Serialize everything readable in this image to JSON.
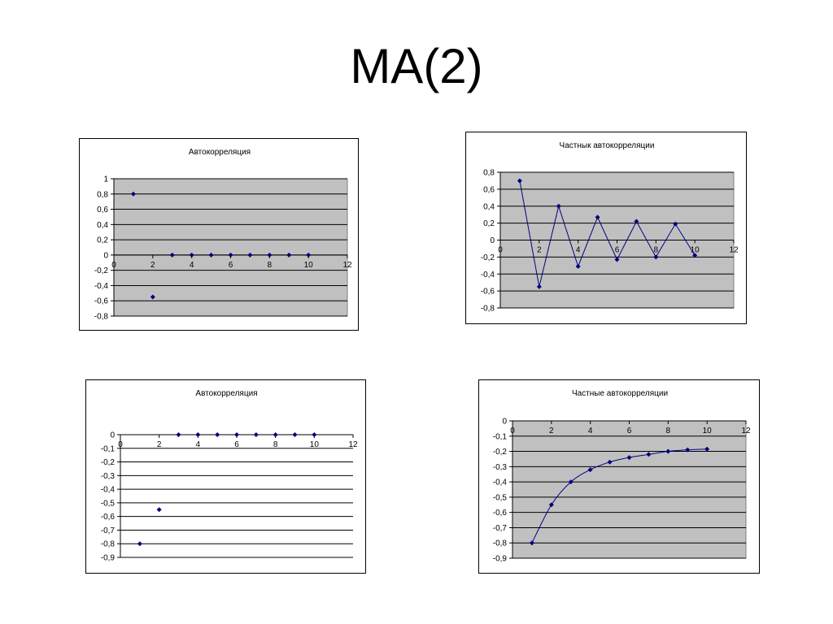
{
  "slide": {
    "title": "MA(2)"
  },
  "chart_data": [
    {
      "type": "scatter",
      "title": "Автокорреляция",
      "x": [
        1,
        2,
        3,
        4,
        5,
        6,
        7,
        8,
        9,
        10
      ],
      "y": [
        0.8,
        -0.55,
        0,
        0,
        0,
        0,
        0,
        0,
        0,
        0
      ],
      "xlim": [
        0,
        12
      ],
      "ylim": [
        -0.8,
        1
      ],
      "xticks": [
        0,
        2,
        4,
        6,
        8,
        10,
        12
      ],
      "yticks": [
        1,
        0.8,
        0.6,
        0.4,
        0.2,
        0,
        -0.2,
        -0.4,
        -0.6,
        -0.8
      ],
      "xtick_labels": [
        "0",
        "2",
        "4",
        "6",
        "8",
        "10",
        "12"
      ],
      "ytick_labels": [
        "1",
        "0,8",
        "0,6",
        "0,4",
        "0,2",
        "0",
        "-0,2",
        "-0,4",
        "-0,6",
        "-0,8"
      ],
      "grid": true,
      "legend": "none",
      "plot_bg": "#c0c0c0",
      "marker_color": "#000080"
    },
    {
      "type": "line",
      "title": "Частнык автокорреляции",
      "x": [
        1,
        2,
        3,
        4,
        5,
        6,
        7,
        8,
        9,
        10
      ],
      "y": [
        0.7,
        -0.55,
        0.4,
        -0.31,
        0.27,
        -0.23,
        0.22,
        -0.2,
        0.19,
        -0.18
      ],
      "xlim": [
        0,
        12
      ],
      "ylim": [
        -0.8,
        0.8
      ],
      "xticks": [
        0,
        2,
        4,
        6,
        8,
        10,
        12
      ],
      "yticks": [
        0.8,
        0.6,
        0.4,
        0.2,
        0,
        -0.2,
        -0.4,
        -0.6,
        -0.8
      ],
      "xtick_labels": [
        "0",
        "2",
        "4",
        "6",
        "8",
        "10",
        "12"
      ],
      "ytick_labels": [
        "0,8",
        "0,6",
        "0,4",
        "0,2",
        "0",
        "-0,2",
        "-0,4",
        "-0,6",
        "-0,8"
      ],
      "grid": true,
      "legend": "none",
      "plot_bg": "#c0c0c0",
      "marker_color": "#000080"
    },
    {
      "type": "scatter",
      "title": "Автокорреляция",
      "x": [
        1,
        2,
        3,
        4,
        5,
        6,
        7,
        8,
        9,
        10
      ],
      "y": [
        -0.8,
        -0.55,
        0,
        0,
        0,
        0,
        0,
        0,
        0,
        0
      ],
      "xlim": [
        0,
        12
      ],
      "ylim": [
        -0.9,
        0
      ],
      "xticks": [
        0,
        2,
        4,
        6,
        8,
        10,
        12
      ],
      "yticks": [
        0,
        -0.1,
        -0.2,
        -0.3,
        -0.4,
        -0.5,
        -0.6,
        -0.7,
        -0.8,
        -0.9
      ],
      "xtick_labels": [
        "0",
        "2",
        "4",
        "6",
        "8",
        "10",
        "12"
      ],
      "ytick_labels": [
        "0",
        "-0,1",
        "-0,2",
        "-0,3",
        "-0,4",
        "-0,5",
        "-0,6",
        "-0,7",
        "-0,8",
        "-0,9"
      ],
      "grid": true,
      "legend": "none",
      "plot_bg": "#ffffff",
      "marker_color": "#000080"
    },
    {
      "type": "line",
      "title": "Частные автокорреляции",
      "x": [
        1,
        2,
        3,
        4,
        5,
        6,
        7,
        8,
        9,
        10
      ],
      "y": [
        -0.8,
        -0.55,
        -0.4,
        -0.32,
        -0.27,
        -0.24,
        -0.22,
        -0.2,
        -0.19,
        -0.185
      ],
      "xlim": [
        0,
        12
      ],
      "ylim": [
        -0.9,
        0
      ],
      "xticks": [
        0,
        2,
        4,
        6,
        8,
        10,
        12
      ],
      "yticks": [
        0,
        -0.1,
        -0.2,
        -0.3,
        -0.4,
        -0.5,
        -0.6,
        -0.7,
        -0.8,
        -0.9
      ],
      "xtick_labels": [
        "0",
        "2",
        "4",
        "6",
        "8",
        "10",
        "12"
      ],
      "ytick_labels": [
        "0",
        "-0,1",
        "-0,2",
        "-0,3",
        "-0,4",
        "-0,5",
        "-0,6",
        "-0,7",
        "-0,8",
        "-0,9"
      ],
      "grid": true,
      "smooth": true,
      "legend": "none",
      "plot_bg": "#c0c0c0",
      "marker_color": "#000080"
    }
  ]
}
